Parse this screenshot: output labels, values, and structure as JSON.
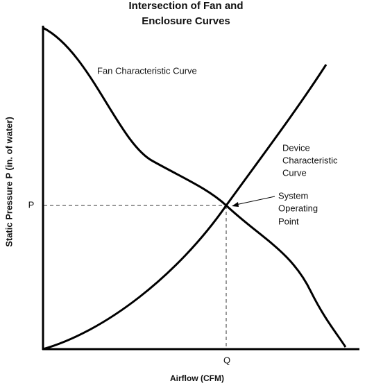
{
  "title": [
    "Intersection of Fan and",
    "Enclosure Curves"
  ],
  "y_axis_label": "Static Pressure P (in. of water)",
  "x_axis_label": "Airflow (CFM)",
  "p_label": "P",
  "q_label": "Q",
  "fan_curve_label": "Fan Characteristic Curve",
  "device_curve_label": [
    "Device",
    "Characteristic",
    "Curve"
  ],
  "operating_point_label": [
    "System",
    "Operating",
    "Point"
  ]
}
